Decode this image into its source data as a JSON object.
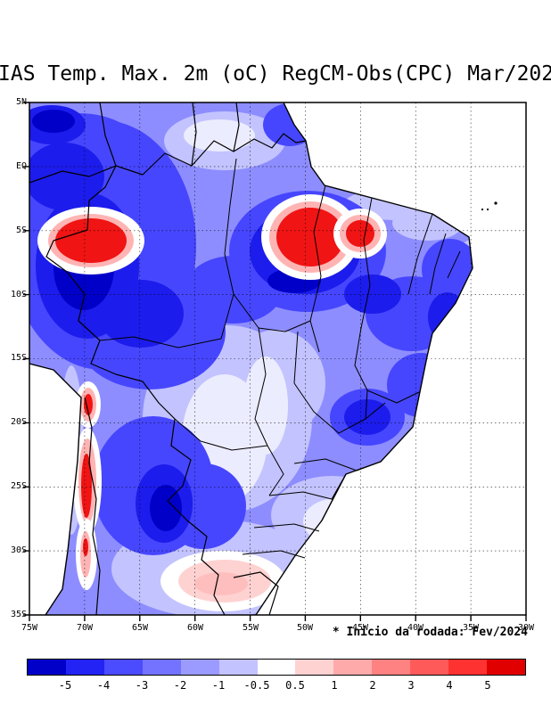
{
  "title": "IAS Temp. Max. 2m (oC) RegCM-Obs(CPC) Mar/202",
  "note": "* Inicio da rodada: Fev/2024",
  "axes": {
    "lat_labels": [
      "5N",
      "EQ",
      "5S",
      "10S",
      "15S",
      "20S",
      "25S",
      "30S",
      "35S"
    ],
    "lon_labels": [
      "75W",
      "70W",
      "65W",
      "60W",
      "55W",
      "50W",
      "45W",
      "40W",
      "35W",
      "30W"
    ]
  },
  "colorbar": {
    "tick_labels": [
      "-5",
      "-4",
      "-3",
      "-2",
      "-1",
      "-0.5",
      "0.5",
      "1",
      "2",
      "3",
      "4",
      "5"
    ],
    "colors": [
      "#0000c8",
      "#2323f5",
      "#4b4bff",
      "#7373ff",
      "#9b9bff",
      "#c3c3ff",
      "#ffffff",
      "#ffd2d2",
      "#ffaaaa",
      "#ff8282",
      "#ff5a5a",
      "#ff3232",
      "#e10000"
    ]
  },
  "chart_data": {
    "type": "filled_contour_map",
    "title": "IAS Temp. Max. 2m (oC) RegCM-Obs(CPC) Mar/202",
    "units": "oC",
    "variable": "Temperature maximum 2m bias, RegCM minus Obs (CPC)",
    "annotation": "* Inicio da rodada: Fev/2024",
    "domain": {
      "lon_west": "75W",
      "lon_east": "30W",
      "lat_south": "35S",
      "lat_north": "5N"
    },
    "lat_ticks": [
      "5N",
      "EQ",
      "5S",
      "10S",
      "15S",
      "20S",
      "25S",
      "30S",
      "35S"
    ],
    "lon_ticks": [
      "75W",
      "70W",
      "65W",
      "60W",
      "55W",
      "50W",
      "45W",
      "40W",
      "35W",
      "30W"
    ],
    "contour_levels": [
      -5,
      -4,
      -3,
      -2,
      -1,
      -0.5,
      0.5,
      1,
      2,
      3,
      4,
      5
    ],
    "palette": [
      "#0000c8",
      "#2323f5",
      "#4b4bff",
      "#7373ff",
      "#9b9bff",
      "#c3c3ff",
      "#ffffff",
      "#ffd2d2",
      "#ffaaaa",
      "#ff8282",
      "#ff5a5a",
      "#ff3232",
      "#e10000"
    ],
    "grid": "dashed 5-degree graticule",
    "features": [
      {
        "description": "Strong cold bias -4 to below -5 over western Amazon",
        "approx_location": "75W-62W, 2N-13S",
        "sign": "negative"
      },
      {
        "description": "Warm bias core above +4 surrounded by white halo",
        "approx_location": "70W, 6S-8S",
        "sign": "positive"
      },
      {
        "description": "Large warm bias core above +4",
        "approx_location": "49W-47W, 5S-9S",
        "sign": "positive"
      },
      {
        "description": "Secondary warm bias core above +3",
        "approx_location": "45W, 6S",
        "sign": "positive"
      },
      {
        "description": "Elongated warm bias band along Andes and Chile",
        "approx_location": "70W, 19S-33S",
        "sign": "positive"
      },
      {
        "description": "Weak warm bias +0.5 to +1",
        "approx_location": "58W-53W, 31S-34S",
        "sign": "positive"
      },
      {
        "description": "Moderate cold bias -2 to -4 over central and northeastern Brazil",
        "approx_location": "55W-38W, 4S-20S",
        "sign": "negative"
      },
      {
        "description": "Cold bias -3 to -5 over Bolivia and Paraguay lowlands",
        "approx_location": "64W-57W, 17S-27S",
        "sign": "negative"
      },
      {
        "description": "Near-zero to weak cold bias over central Brazil corridor and far south",
        "approx_location": "55W, 12S-18S and 25S-33S",
        "sign": "weak"
      },
      {
        "description": "Oceans shown white (no data)",
        "approx_location": "Atlantic and Pacific offshore",
        "sign": "none"
      }
    ]
  }
}
